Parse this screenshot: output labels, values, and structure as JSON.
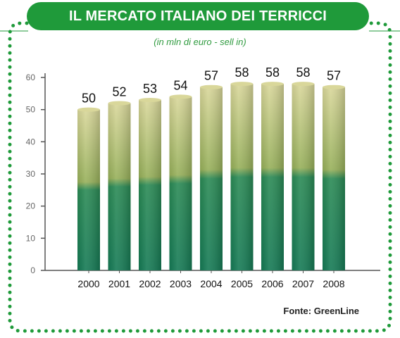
{
  "title": "IL MERCATO ITALIANO DEI TERRICCI",
  "subtitle": "(in mln di euro - sell in)",
  "source": "Fonte: GreenLine",
  "colors": {
    "border": "#1f9a3a",
    "title_bg": "#1f9a3a",
    "bar_top": "#d9d79a",
    "bar_mid": "#97b05a",
    "bar_bottom": "#157a55",
    "axis": "#555555"
  },
  "chart_data": {
    "type": "bar",
    "categories": [
      "2000",
      "2001",
      "2002",
      "2003",
      "2004",
      "2005",
      "2006",
      "2007",
      "2008"
    ],
    "values": [
      50,
      52,
      53,
      54,
      57,
      58,
      58,
      58,
      57
    ],
    "data_labels": [
      "50",
      "52",
      "53",
      "54",
      "57",
      "58",
      "58",
      "58",
      "57"
    ],
    "ylim": [
      0,
      60
    ],
    "yticks": [
      0,
      10,
      20,
      30,
      40,
      50,
      60
    ],
    "ytick_labels": [
      "0",
      "10",
      "20",
      "30",
      "40",
      "50",
      "60"
    ],
    "title": "IL MERCATO ITALIANO DEI TERRICCI",
    "xlabel": "",
    "ylabel": "",
    "grid": false
  }
}
